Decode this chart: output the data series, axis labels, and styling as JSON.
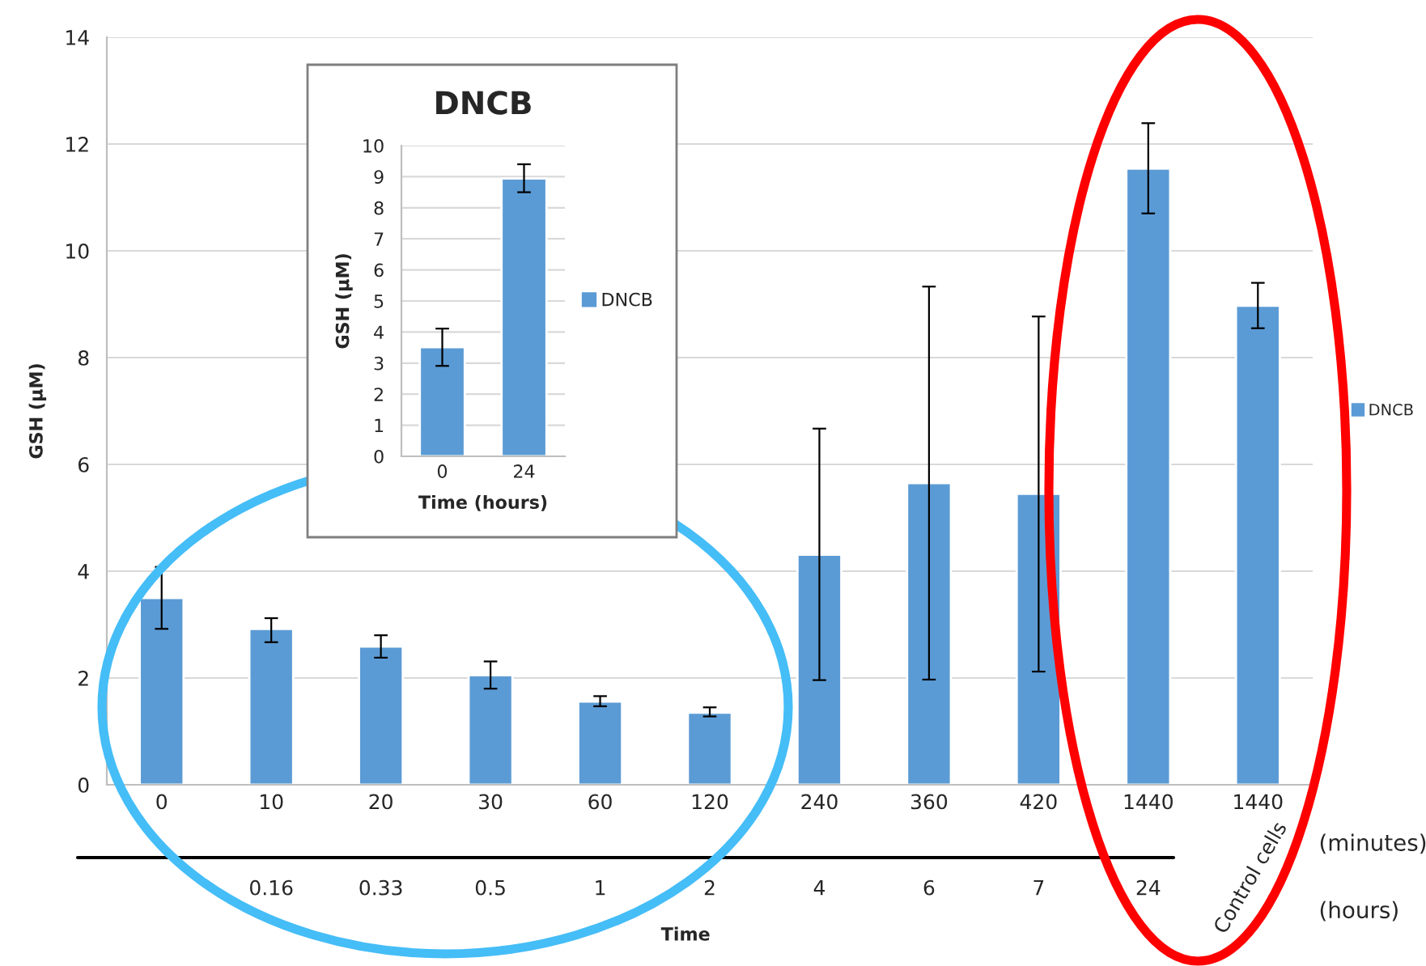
{
  "chart_data": [
    {
      "type": "bar",
      "ylabel": "GSH (µM)",
      "xlabel": "Time",
      "categories": [
        "0",
        "10\n0.16",
        "20\n0.33",
        "30\n0.5",
        "60\n1",
        "120\n2",
        "240\n4",
        "360\n6",
        "420\n7",
        "1440\n24",
        "1440\nControl cells"
      ],
      "series": [
        {
          "name": "DNCB",
          "color": "#5b9bd5",
          "values": [
            3.5,
            2.92,
            2.59,
            2.05,
            1.56,
            1.35,
            4.31,
            5.65,
            5.45,
            11.54,
            8.97
          ],
          "errors": [
            [
              2.92,
              4.08
            ],
            [
              2.67,
              3.12
            ],
            [
              2.38,
              2.8
            ],
            [
              1.8,
              2.31
            ],
            [
              1.47,
              1.66
            ],
            [
              1.28,
              1.45
            ],
            [
              1.96,
              6.67
            ],
            [
              1.97,
              9.33
            ],
            [
              2.12,
              8.77
            ],
            [
              10.7,
              12.39
            ],
            [
              8.55,
              9.4
            ]
          ]
        }
      ],
      "ylim": [
        0,
        14
      ],
      "yticks": [
        0,
        2,
        4,
        6,
        8,
        10,
        12,
        14
      ],
      "grid": "y",
      "legend": "right",
      "annotations": [
        "(minutes)",
        "(hours)"
      ]
    },
    {
      "type": "bar",
      "title": "DNCB",
      "xlabel": "Time (hours)",
      "ylabel": "GSH (µM)",
      "categories": [
        "0",
        "24"
      ],
      "series": [
        {
          "name": "DNCB",
          "color": "#5b9bd5",
          "values": [
            3.51,
            8.94
          ],
          "errors": [
            [
              2.91,
              4.11
            ],
            [
              8.5,
              9.4
            ]
          ]
        }
      ],
      "ylim": [
        0,
        10
      ],
      "yticks": [
        0,
        1,
        2,
        3,
        4,
        5,
        6,
        7,
        8,
        9,
        10
      ],
      "grid": "y",
      "legend": "right"
    }
  ]
}
